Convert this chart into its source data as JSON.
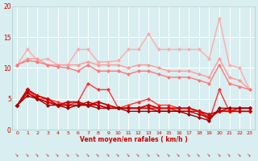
{
  "x": [
    0,
    1,
    2,
    3,
    4,
    5,
    6,
    7,
    8,
    9,
    10,
    11,
    12,
    13,
    14,
    15,
    16,
    17,
    18,
    19,
    20,
    21,
    22,
    23
  ],
  "series": [
    {
      "color": "#ffaaaa",
      "linewidth": 1.0,
      "markersize": 2.5,
      "values": [
        10.5,
        13.0,
        11.2,
        11.5,
        10.5,
        10.5,
        13.0,
        13.0,
        11.0,
        11.0,
        11.2,
        13.0,
        13.0,
        15.5,
        13.0,
        13.0,
        13.0,
        13.0,
        13.0,
        11.5,
        18.0,
        10.5,
        10.0,
        6.5
      ]
    },
    {
      "color": "#ff9999",
      "linewidth": 1.0,
      "markersize": 2.5,
      "values": [
        10.5,
        11.5,
        11.5,
        10.5,
        10.5,
        10.5,
        10.5,
        11.0,
        10.5,
        10.5,
        10.5,
        10.0,
        10.5,
        10.5,
        10.0,
        9.5,
        9.5,
        9.5,
        9.0,
        8.5,
        11.5,
        8.5,
        8.0,
        6.5
      ]
    },
    {
      "color": "#ff7777",
      "linewidth": 1.0,
      "markersize": 2.5,
      "values": [
        10.5,
        11.2,
        11.0,
        10.5,
        10.2,
        10.0,
        9.5,
        10.5,
        9.5,
        9.5,
        9.5,
        9.0,
        9.5,
        9.5,
        9.0,
        8.5,
        8.5,
        8.5,
        8.0,
        7.5,
        10.5,
        7.5,
        7.0,
        6.5
      ]
    },
    {
      "color": "#ff3333",
      "linewidth": 1.0,
      "markersize": 2.5,
      "values": [
        4.0,
        6.5,
        5.0,
        5.0,
        4.5,
        4.0,
        4.5,
        7.5,
        6.5,
        6.5,
        3.5,
        4.0,
        4.5,
        5.0,
        4.0,
        4.0,
        3.5,
        3.5,
        3.0,
        1.5,
        6.5,
        3.0,
        3.5,
        3.5
      ]
    },
    {
      "color": "#cc0000",
      "linewidth": 1.3,
      "markersize": 3.0,
      "values": [
        4.0,
        6.5,
        5.5,
        5.0,
        4.0,
        4.5,
        4.5,
        4.0,
        4.5,
        4.0,
        3.5,
        3.5,
        3.5,
        4.0,
        3.5,
        3.5,
        3.5,
        3.5,
        3.0,
        2.5,
        3.0,
        3.0,
        3.0,
        3.0
      ]
    },
    {
      "color": "#ee0000",
      "linewidth": 1.0,
      "markersize": 2.5,
      "values": [
        4.0,
        6.0,
        5.0,
        4.5,
        4.0,
        4.0,
        4.0,
        4.0,
        4.0,
        3.5,
        3.5,
        3.5,
        3.5,
        3.5,
        3.5,
        3.5,
        3.0,
        3.0,
        3.0,
        2.0,
        3.0,
        3.0,
        3.5,
        3.5
      ]
    },
    {
      "color": "#bb0000",
      "linewidth": 1.0,
      "markersize": 2.5,
      "values": [
        4.0,
        6.0,
        5.0,
        4.5,
        4.0,
        4.0,
        4.0,
        4.5,
        4.0,
        3.5,
        3.5,
        3.5,
        3.5,
        3.5,
        3.0,
        3.0,
        3.0,
        3.0,
        2.5,
        2.0,
        3.0,
        3.5,
        3.5,
        3.5
      ]
    },
    {
      "color": "#990000",
      "linewidth": 1.0,
      "markersize": 2.5,
      "values": [
        4.0,
        5.5,
        5.0,
        4.0,
        4.0,
        3.5,
        4.0,
        4.0,
        3.5,
        3.5,
        3.5,
        3.0,
        3.0,
        3.0,
        3.0,
        3.0,
        3.0,
        2.5,
        2.0,
        1.5,
        3.5,
        3.5,
        3.5,
        3.5
      ]
    }
  ],
  "xlabel": "Vent moyen/en rafales ( km/h )",
  "xlim_min": -0.5,
  "xlim_max": 23.5,
  "ylim": [
    0,
    20
  ],
  "yticks": [
    0,
    5,
    10,
    15,
    20
  ],
  "xticks": [
    0,
    1,
    2,
    3,
    4,
    5,
    6,
    7,
    8,
    9,
    10,
    11,
    12,
    13,
    14,
    15,
    16,
    17,
    18,
    19,
    20,
    21,
    22,
    23
  ],
  "background_color": "#d8eef0",
  "grid_color": "#ffffff",
  "tick_color": "#cc0000",
  "label_color": "#cc0000",
  "arrow_symbol": "↓"
}
